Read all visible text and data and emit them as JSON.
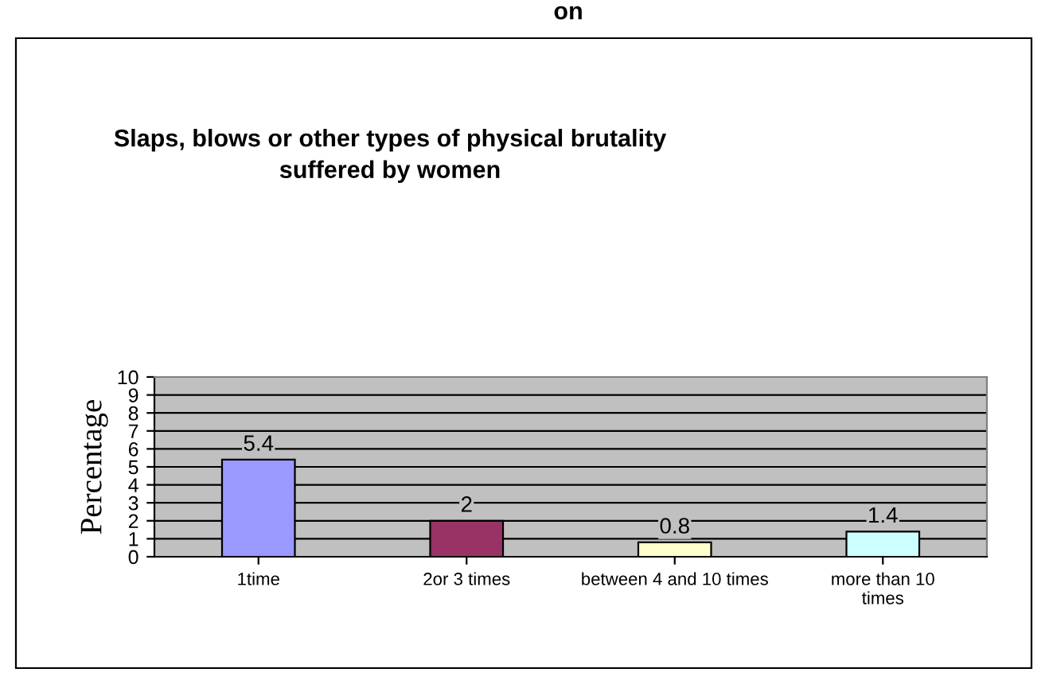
{
  "chart_data": {
    "type": "bar",
    "title": "Slaps, blows or other types of physical brutality\nsuffered by women",
    "ylabel": "Percentage",
    "categories": [
      "1time",
      "2or 3 times",
      "between 4 and 10 times",
      "more than 10\ntimes"
    ],
    "values": [
      5.4,
      2,
      0.8,
      1.4
    ],
    "colors": [
      "#9999ff",
      "#993366",
      "#ffffcc",
      "#ccffff"
    ],
    "ylim": [
      0,
      10
    ],
    "yticks": [
      0,
      1,
      2,
      3,
      4,
      5,
      6,
      7,
      8,
      9,
      10
    ],
    "grid": "y",
    "data_labels": true,
    "annotations": [
      "on"
    ]
  }
}
